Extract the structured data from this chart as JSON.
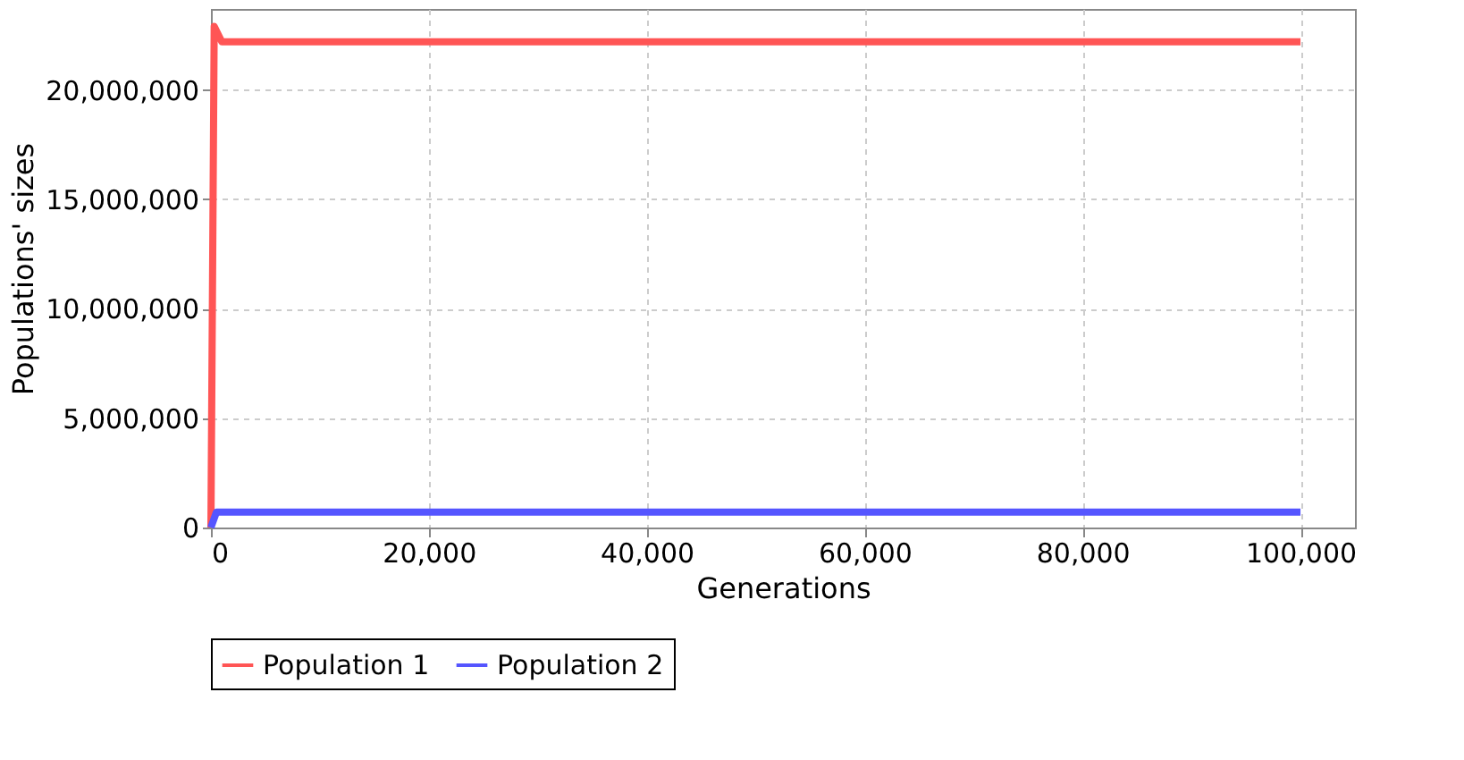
{
  "chart_data": {
    "type": "line",
    "xlabel": "Generations",
    "ylabel": "Populations' sizes",
    "series": [
      {
        "name": "Population 1",
        "color": "#ff5555",
        "x": [
          0,
          300,
          1000,
          100000
        ],
        "values": [
          0,
          22900000,
          22200000,
          22200000
        ]
      },
      {
        "name": "Population 2",
        "color": "#5555ff",
        "x": [
          0,
          500,
          100000
        ],
        "values": [
          0,
          700000,
          700000
        ]
      }
    ],
    "xlim": [
      0,
      105000
    ],
    "xticks": [
      {
        "value": 0,
        "label": "0"
      },
      {
        "value": 20000,
        "label": "20,000"
      },
      {
        "value": 40000,
        "label": "40,000"
      },
      {
        "value": 60000,
        "label": "60,000"
      },
      {
        "value": 80000,
        "label": "80,000"
      },
      {
        "value": 100000,
        "label": "100,000"
      }
    ],
    "ylim": [
      0,
      23700000
    ],
    "yticks": [
      {
        "value": 0,
        "label": "0"
      },
      {
        "value": 5000000,
        "label": "5,000,000"
      },
      {
        "value": 10000000,
        "label": "10,000,000"
      },
      {
        "value": 15000000,
        "label": "15,000,000"
      },
      {
        "value": 20000000,
        "label": "20,000,000"
      }
    ],
    "grid": true,
    "legend": "bottom",
    "marker": "none",
    "line_style": "solid"
  }
}
